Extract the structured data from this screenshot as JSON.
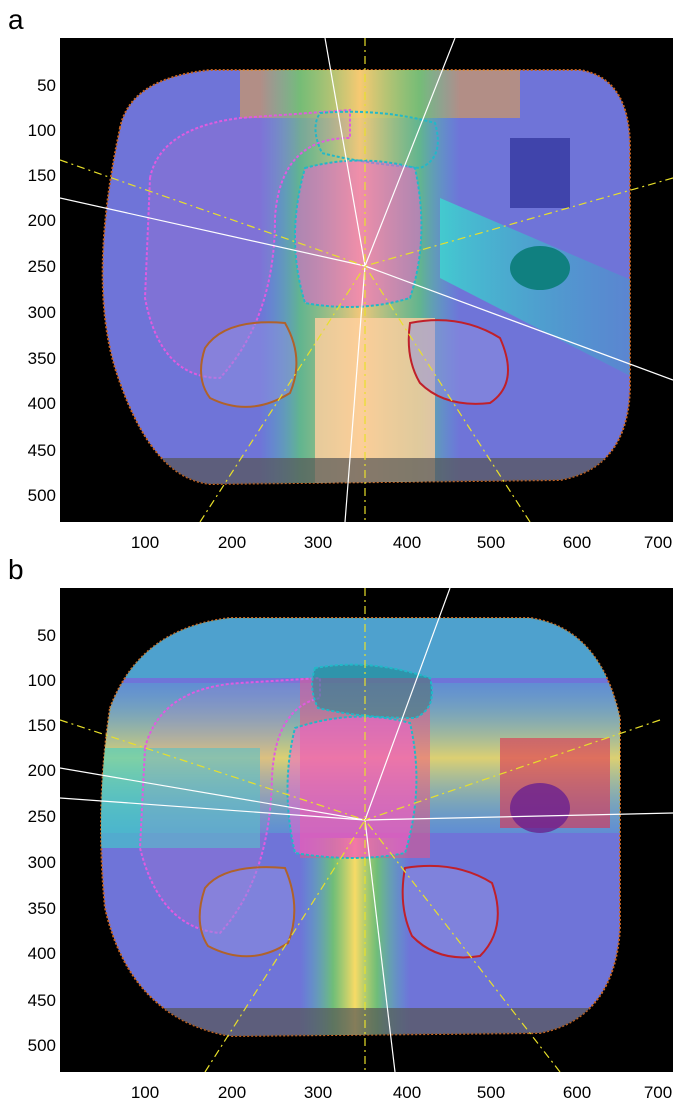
{
  "figure": {
    "panels": [
      {
        "label": "a",
        "y_ticks": [
          "50",
          "100",
          "150",
          "200",
          "250",
          "300",
          "350",
          "400",
          "450",
          "500"
        ],
        "x_ticks": [
          "100",
          "200",
          "300",
          "400",
          "500",
          "600",
          "700"
        ]
      },
      {
        "label": "b",
        "y_ticks": [
          "50",
          "100",
          "150",
          "200",
          "250",
          "300",
          "350",
          "400",
          "450",
          "500"
        ],
        "x_ticks": [
          "100",
          "200",
          "300",
          "400",
          "500",
          "600",
          "700"
        ]
      }
    ]
  },
  "colors": {
    "background": "#000000",
    "body": "#6f74d8",
    "contour_liver": "#e05be0",
    "contour_target": "#22b8c8",
    "contour_kidney_left": "#b0622a",
    "contour_kidney_right": "#c0202a",
    "beam_lines": "#ffffff",
    "guide_lines": "#e8e02a"
  }
}
